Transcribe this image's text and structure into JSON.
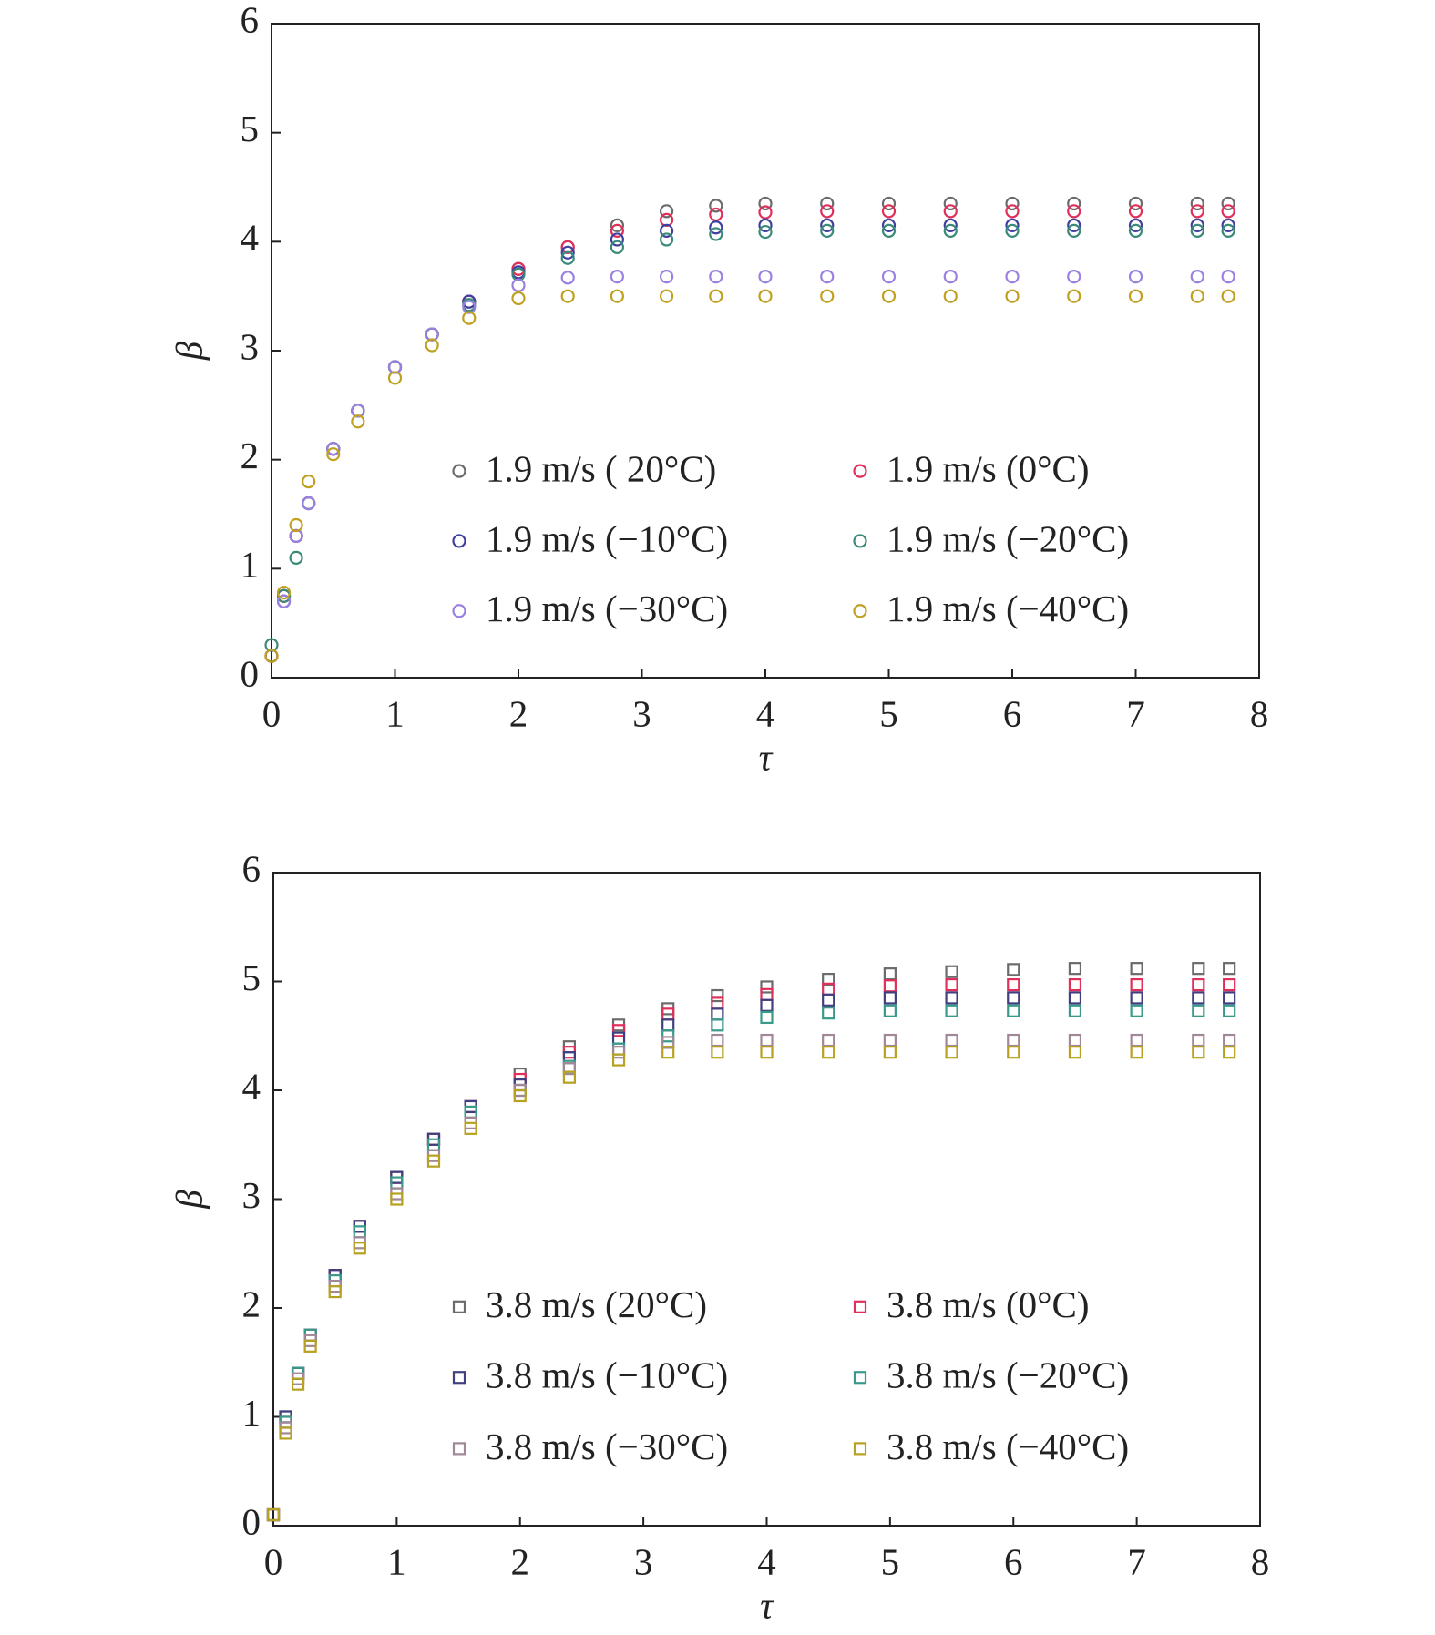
{
  "chart_data": [
    {
      "type": "scatter",
      "marker": "circle",
      "xlabel": "τ",
      "ylabel": "β",
      "xlim": [
        0,
        8
      ],
      "ylim": [
        0,
        6
      ],
      "xticks": [
        0,
        1,
        2,
        3,
        4,
        5,
        6,
        7,
        8
      ],
      "yticks": [
        0,
        1,
        2,
        3,
        4,
        5,
        6
      ],
      "x": [
        0,
        0.1,
        0.2,
        0.3,
        0.5,
        0.7,
        1.0,
        1.3,
        1.6,
        2.0,
        2.4,
        2.8,
        3.2,
        3.6,
        4.0,
        4.5,
        5.0,
        5.5,
        6.0,
        6.5,
        7.0,
        7.5,
        7.75
      ],
      "series": [
        {
          "name": "1.9 m/s ( 20°C)",
          "color": "#6b6b6b",
          "values": [
            0.2,
            0.75,
            1.3,
            1.6,
            2.1,
            2.45,
            2.85,
            3.15,
            3.45,
            3.75,
            3.95,
            4.15,
            4.28,
            4.33,
            4.35,
            4.35,
            4.35,
            4.35,
            4.35,
            4.35,
            4.35,
            4.35,
            4.35
          ]
        },
        {
          "name": "1.9 m/s (0°C)",
          "color": "#e0305a",
          "values": [
            0.2,
            0.75,
            1.3,
            1.6,
            2.1,
            2.45,
            2.85,
            3.15,
            3.45,
            3.75,
            3.95,
            4.1,
            4.2,
            4.25,
            4.27,
            4.28,
            4.28,
            4.28,
            4.28,
            4.28,
            4.28,
            4.28,
            4.28
          ]
        },
        {
          "name": "1.9 m/s (−10°C)",
          "color": "#4040a0",
          "values": [
            0.2,
            0.7,
            1.3,
            1.6,
            2.1,
            2.45,
            2.85,
            3.15,
            3.45,
            3.72,
            3.9,
            4.02,
            4.1,
            4.13,
            4.15,
            4.15,
            4.15,
            4.15,
            4.15,
            4.15,
            4.15,
            4.15,
            4.15
          ]
        },
        {
          "name": "1.9 m/s (−20°C)",
          "color": "#3a8a7a",
          "values": [
            0.3,
            0.75,
            1.1,
            1.6,
            2.1,
            2.45,
            2.85,
            3.15,
            3.42,
            3.7,
            3.85,
            3.95,
            4.02,
            4.07,
            4.09,
            4.1,
            4.1,
            4.1,
            4.1,
            4.1,
            4.1,
            4.1,
            4.1
          ]
        },
        {
          "name": "1.9 m/s (−30°C)",
          "color": "#9a80e0",
          "values": [
            0.2,
            0.7,
            1.3,
            1.6,
            2.1,
            2.45,
            2.85,
            3.15,
            3.4,
            3.6,
            3.67,
            3.68,
            3.68,
            3.68,
            3.68,
            3.68,
            3.68,
            3.68,
            3.68,
            3.68,
            3.68,
            3.68,
            3.68
          ]
        },
        {
          "name": "1.9 m/s (−40°C)",
          "color": "#c0a020",
          "values": [
            0.2,
            0.78,
            1.4,
            1.8,
            2.05,
            2.35,
            2.75,
            3.05,
            3.3,
            3.48,
            3.5,
            3.5,
            3.5,
            3.5,
            3.5,
            3.5,
            3.5,
            3.5,
            3.5,
            3.5,
            3.5,
            3.5,
            3.5
          ]
        }
      ]
    },
    {
      "type": "scatter",
      "marker": "square",
      "xlabel": "τ",
      "ylabel": "β",
      "xlim": [
        0,
        8
      ],
      "ylim": [
        0,
        6
      ],
      "xticks": [
        0,
        1,
        2,
        3,
        4,
        5,
        6,
        7,
        8
      ],
      "yticks": [
        0,
        1,
        2,
        3,
        4,
        5,
        6
      ],
      "x": [
        0,
        0.1,
        0.2,
        0.3,
        0.5,
        0.7,
        1.0,
        1.3,
        1.6,
        2.0,
        2.4,
        2.8,
        3.2,
        3.6,
        4.0,
        4.5,
        5.0,
        5.5,
        6.0,
        6.5,
        7.0,
        7.5,
        7.75
      ],
      "series": [
        {
          "name": "3.8 m/s (20°C)",
          "color": "#6b6b6b",
          "values": [
            0.1,
            1.0,
            1.4,
            1.75,
            2.3,
            2.75,
            3.2,
            3.55,
            3.85,
            4.15,
            4.4,
            4.6,
            4.75,
            4.87,
            4.95,
            5.02,
            5.07,
            5.09,
            5.11,
            5.12,
            5.12,
            5.12,
            5.12
          ]
        },
        {
          "name": "3.8 m/s (0°C)",
          "color": "#e0305a",
          "values": [
            0.1,
            0.95,
            1.4,
            1.75,
            2.3,
            2.75,
            3.2,
            3.55,
            3.85,
            4.1,
            4.35,
            4.55,
            4.7,
            4.8,
            4.88,
            4.93,
            4.96,
            4.97,
            4.97,
            4.97,
            4.97,
            4.97,
            4.97
          ]
        },
        {
          "name": "3.8 m/s (−10°C)",
          "color": "#404080",
          "values": [
            0.1,
            1.0,
            1.4,
            1.75,
            2.3,
            2.75,
            3.2,
            3.55,
            3.85,
            4.05,
            4.3,
            4.48,
            4.6,
            4.7,
            4.78,
            4.83,
            4.85,
            4.85,
            4.85,
            4.85,
            4.85,
            4.85,
            4.85
          ]
        },
        {
          "name": "3.8 m/s (−20°C)",
          "color": "#3a9a8a",
          "values": [
            0.1,
            0.95,
            1.4,
            1.75,
            2.25,
            2.7,
            3.15,
            3.5,
            3.8,
            4.0,
            4.22,
            4.38,
            4.5,
            4.6,
            4.67,
            4.71,
            4.73,
            4.73,
            4.73,
            4.73,
            4.73,
            4.73,
            4.73
          ]
        },
        {
          "name": "3.8 m/s (−30°C)",
          "color": "#a08898",
          "values": [
            0.1,
            0.9,
            1.35,
            1.7,
            2.2,
            2.6,
            3.05,
            3.4,
            3.7,
            4.0,
            4.2,
            4.35,
            4.44,
            4.46,
            4.46,
            4.46,
            4.46,
            4.46,
            4.46,
            4.46,
            4.46,
            4.46,
            4.46
          ]
        },
        {
          "name": "3.8 m/s (−40°C)",
          "color": "#b8a020",
          "values": [
            0.1,
            0.85,
            1.3,
            1.65,
            2.15,
            2.55,
            3.0,
            3.35,
            3.65,
            3.95,
            4.12,
            4.28,
            4.35,
            4.35,
            4.35,
            4.35,
            4.35,
            4.35,
            4.35,
            4.35,
            4.35,
            4.35,
            4.35
          ]
        }
      ]
    }
  ]
}
